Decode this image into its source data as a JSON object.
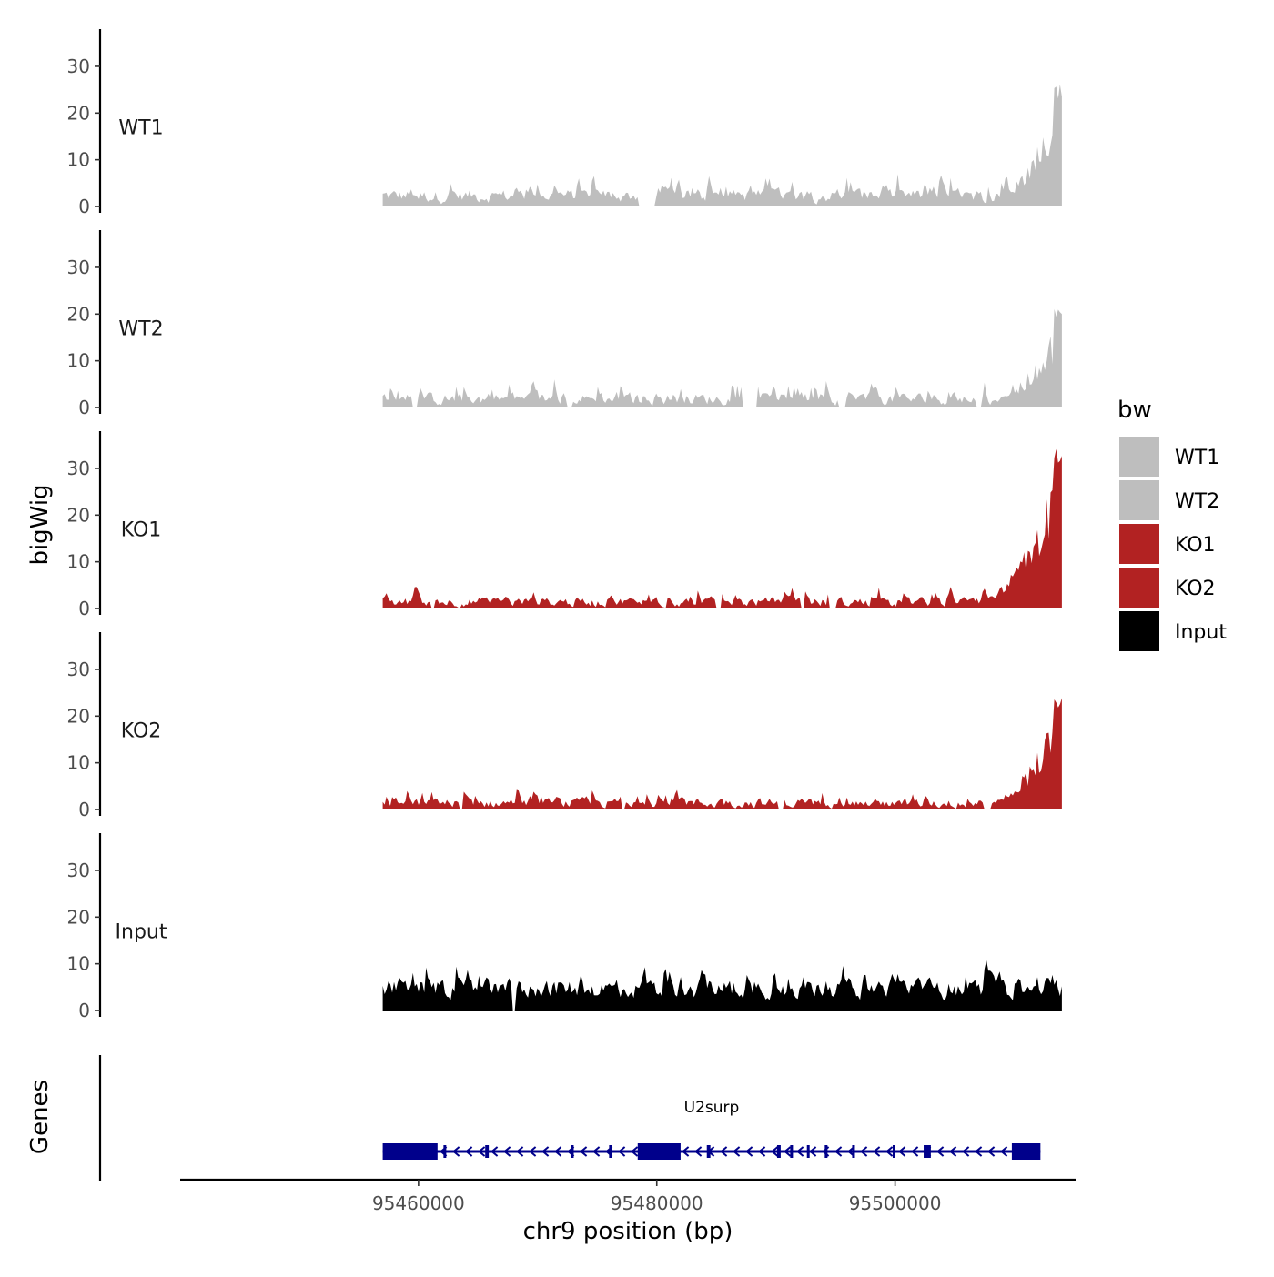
{
  "chart_data": {
    "type": "area",
    "title": "",
    "y_axis_title": "bigWig",
    "genes_axis_title": "Genes",
    "xlabel": "chr9 position (bp)",
    "xlim": [
      95440000,
      95515000
    ],
    "ylim": [
      0,
      37
    ],
    "y_ticks": [
      0,
      10,
      20,
      30
    ],
    "x_ticks": [
      95460000,
      95480000,
      95500000
    ],
    "x_tick_labels": [
      "95460000",
      "95480000",
      "95500000"
    ],
    "data_range": [
      95457000,
      95514000
    ],
    "legend": {
      "title": "bw",
      "entries": [
        {
          "label": "WT1",
          "color": "#BEBEBE"
        },
        {
          "label": "WT2",
          "color": "#BEBEBE"
        },
        {
          "label": "KO1",
          "color": "#B22222"
        },
        {
          "label": "KO2",
          "color": "#B22222"
        },
        {
          "label": "Input",
          "color": "#000000"
        }
      ]
    },
    "series": [
      {
        "name": "WT1",
        "color": "#BEBEBE",
        "baseline": 2.5,
        "noise": 2.2,
        "spike_rate": 0.18,
        "spike_max": 6,
        "gaps": [
          [
            95478500,
            95479800
          ]
        ],
        "peak": {
          "start": 95506000,
          "end": 95514000,
          "max": 27
        }
      },
      {
        "name": "WT2",
        "color": "#BEBEBE",
        "baseline": 2.0,
        "noise": 2.0,
        "spike_rate": 0.18,
        "spike_max": 6,
        "gaps": [
          [
            95459400,
            95459900
          ],
          [
            95472400,
            95472900
          ],
          [
            95487200,
            95488500
          ],
          [
            95495300,
            95495800
          ],
          [
            95506800,
            95507300
          ]
        ],
        "peak": {
          "start": 95506000,
          "end": 95514000,
          "max": 21.5
        }
      },
      {
        "name": "KO1",
        "color": "#B22222",
        "baseline": 1.5,
        "noise": 1.6,
        "spike_rate": 0.15,
        "spike_max": 4,
        "gaps": [
          [
            95461000,
            95461400
          ],
          [
            95485000,
            95485400
          ],
          [
            95492000,
            95492400
          ],
          [
            95494500,
            95495000
          ]
        ],
        "peak": {
          "start": 95505000,
          "end": 95514000,
          "max": 34.5
        }
      },
      {
        "name": "KO2",
        "color": "#B22222",
        "baseline": 1.5,
        "noise": 1.6,
        "spike_rate": 0.15,
        "spike_max": 4,
        "gaps": [
          [
            95463400,
            95463800
          ],
          [
            95477000,
            95477400
          ],
          [
            95490200,
            95490600
          ],
          [
            95507500,
            95508000
          ]
        ],
        "peak": {
          "start": 95505500,
          "end": 95514000,
          "max": 24.5
        }
      },
      {
        "name": "Input",
        "color": "#000000",
        "baseline": 5.0,
        "noise": 3.2,
        "spike_rate": 0.22,
        "spike_max": 6,
        "gaps": [
          [
            95467800,
            95468200
          ]
        ],
        "peak": null
      }
    ],
    "genes": [
      {
        "name": "U2surp",
        "start": 95457000,
        "end": 95512200,
        "strand": "-",
        "color": "#00008B",
        "exons": [
          [
            95457000,
            95461600
          ],
          [
            95478400,
            95482000
          ],
          [
            95502400,
            95503000
          ],
          [
            95509800,
            95512200
          ],
          [
            95462100,
            95462300
          ],
          [
            95465600,
            95465900
          ],
          [
            95472800,
            95473000
          ],
          [
            95476000,
            95476200
          ],
          [
            95484200,
            95484500
          ],
          [
            95490100,
            95490400
          ],
          [
            95491200,
            95491400
          ],
          [
            95492600,
            95492800
          ],
          [
            95494100,
            95494300
          ],
          [
            95496400,
            95496600
          ],
          [
            95499800,
            95500000
          ]
        ]
      }
    ]
  }
}
